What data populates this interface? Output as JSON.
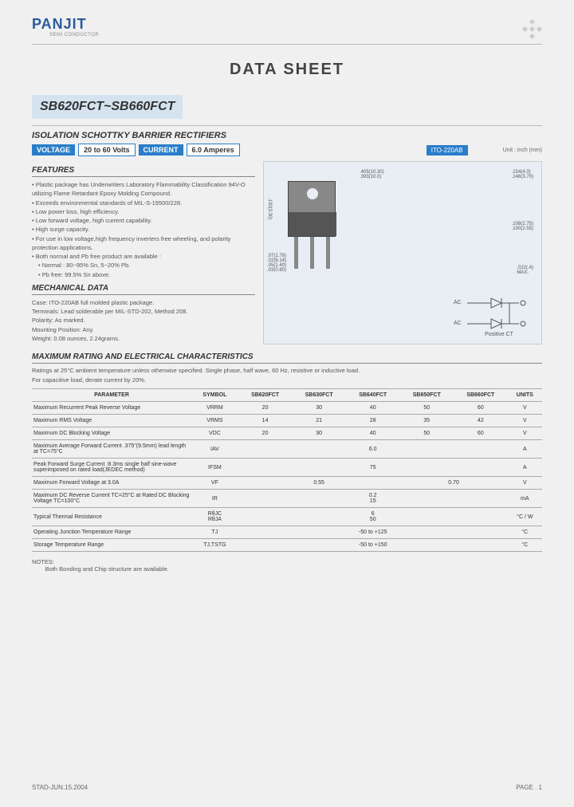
{
  "logo": {
    "brand": "PANJIT",
    "sub": "SEMI CONDUCTOR"
  },
  "title": "DATA  SHEET",
  "part_number": "SB620FCT~SB660FCT",
  "subtitle": "ISOLATION SCHOTTKY BARRIER RECTIFIERS",
  "specs": {
    "voltage_label": "VOLTAGE",
    "voltage_val": "20 to 60 Volts",
    "current_label": "CURRENT",
    "current_val": "6.0 Amperes"
  },
  "package": {
    "label": "ITO-220AB",
    "unit": "Unit : inch (mm)"
  },
  "features": {
    "head": "FEATURES",
    "items": [
      "Plastic package has Underwriters Laboratory Flammability Classification 94V-O utilizing Flame Retardant Epoxy Molding Compound.",
      "Exceeds environmental standards of MIL-S-19500/228.",
      "Low power loss, high efficiency.",
      "Low forward voltage, high current capability.",
      "High surge capacity.",
      "For use in low voltage,high frequency inverters free wheeling, and polarity protection applications.",
      "Both normal and Pb free product are available :"
    ],
    "subitems": [
      "Normal : 80~95% Sn, 5~20% Pb.",
      "Pb free: 99.5% Sn above."
    ]
  },
  "mechanical": {
    "head": "MECHANICAL DATA",
    "lines": [
      "Case: ITO-220AB full molded plastic package.",
      "Terminals: Lead solderable per MIL-STD-202, Method 208.",
      "Polarity:  As marked.",
      "Mounting Position: Any.",
      "Weight: 0.08 ounces, 2.24grams."
    ]
  },
  "max_section": {
    "head": "MAXIMUM RATING AND ELECTRICAL CHARACTERISTICS",
    "note1": "Ratings at 25°C ambient temperature unless otherwise specified.  Single phase, half wave, 60 Hz, resistive or inductive load.",
    "note2": "For capacitive load, derate current by 20%."
  },
  "table": {
    "headers": [
      "PARAMETER",
      "SYMBOL",
      "SB620FCT",
      "SB630FCT",
      "SB640FCT",
      "SB650FCT",
      "SB660FCT",
      "UNITS"
    ],
    "rows": [
      {
        "p": "Maximum Recurrent Peak Reverse Voltage",
        "s": "VRRM",
        "v": [
          "20",
          "30",
          "40",
          "50",
          "60"
        ],
        "u": "V",
        "span": false
      },
      {
        "p": "Maximum RMS Voltage",
        "s": "VRMS",
        "v": [
          "14",
          "21",
          "28",
          "35",
          "42"
        ],
        "u": "V",
        "span": false
      },
      {
        "p": "Maximum DC Blocking Voltage",
        "s": "VDC",
        "v": [
          "20",
          "30",
          "40",
          "50",
          "60"
        ],
        "u": "V",
        "span": false
      },
      {
        "p": "Maximum Average Forward Current .375\"(9.5mm) lead length at TC=75°C",
        "s": "IAV",
        "v": [
          "6.0"
        ],
        "u": "A",
        "span": true
      },
      {
        "p": "Peak Forward Surge Current :8.3ms single half sine-wave superimposed on rated load(JEDEC method)",
        "s": "IFSM",
        "v": [
          "75"
        ],
        "u": "A",
        "span": true
      },
      {
        "p": "Maximum Forward Voltage at 3.0A",
        "s": "VF",
        "v": [
          "0.55",
          "0.55",
          "0.55",
          "0.70",
          "0.70"
        ],
        "u": "V",
        "span": false,
        "merge": [
          3,
          2
        ]
      },
      {
        "p": "Maximum DC Reverse Current TC=25°C at Rated DC Blocking Voltage TC=100°C",
        "s": "IR",
        "v": [
          "0.2\n15"
        ],
        "u": "mA",
        "span": true
      },
      {
        "p": "Typical Thermal Resistance",
        "s": "RθJC\nRθJA",
        "v": [
          "6\n50"
        ],
        "u": "°C / W",
        "span": true
      },
      {
        "p": "Operating Junction Temperature Range",
        "s": "TJ",
        "v": [
          "-50 to +125"
        ],
        "u": "°C",
        "span": true
      },
      {
        "p": "Storage Temperature Range",
        "s": "TJ,TSTG",
        "v": [
          "-50 to +150"
        ],
        "u": "°C",
        "span": true
      }
    ]
  },
  "notes": {
    "label": "NOTES:",
    "text": "Both Bonding and Chip structure are available."
  },
  "footer": {
    "left": "STAD-JUN.15.2004",
    "right": "PAGE .  1"
  },
  "circuit_label": "Positive CT",
  "ac_label": "AC"
}
